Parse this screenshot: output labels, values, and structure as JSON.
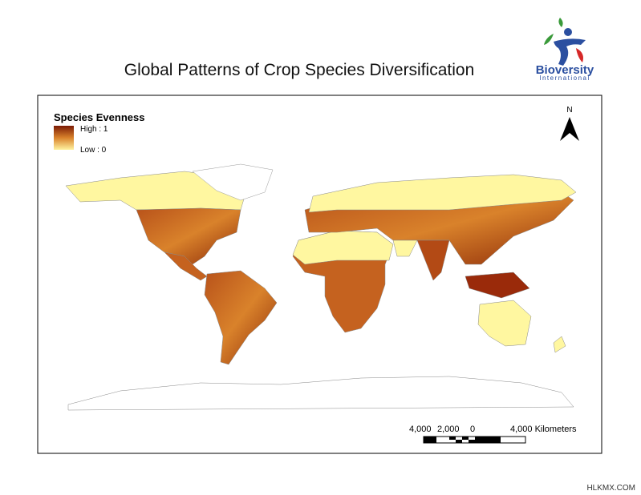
{
  "header": {
    "title": "Global Patterns of Crop Species Diversification"
  },
  "logo": {
    "name": "Bioversity",
    "subtitle": "International"
  },
  "legend": {
    "title": "Species Evenness",
    "high": "High : 1",
    "low": "Low : 0"
  },
  "north_arrow": {
    "label": "N"
  },
  "scale_bar": {
    "labels": [
      "4,000",
      "2,000",
      "0",
      "4,000 Kilometers"
    ]
  },
  "watermark": "HLKMX.COM"
}
